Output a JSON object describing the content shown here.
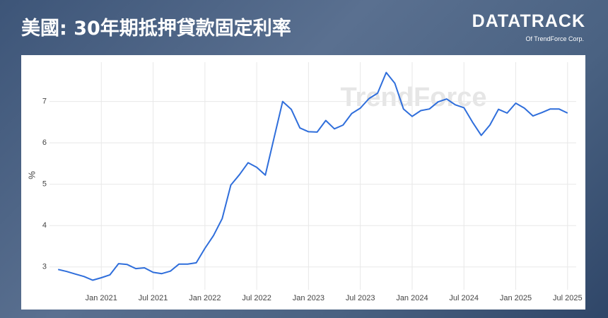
{
  "header": {
    "title": "美國: 30年期抵押貸款固定利率",
    "logo": "DATATRACK",
    "logo_sub": "Of TrendForce Corp."
  },
  "chart_data": {
    "type": "line",
    "watermark": "TrendForce",
    "y_label": "%",
    "x": [
      "2020-08",
      "2020-09",
      "2020-10",
      "2020-11",
      "2020-12",
      "2021-01",
      "2021-02",
      "2021-03",
      "2021-04",
      "2021-05",
      "2021-06",
      "2021-07",
      "2021-08",
      "2021-09",
      "2021-10",
      "2021-11",
      "2021-12",
      "2022-01",
      "2022-02",
      "2022-03",
      "2022-04",
      "2022-05",
      "2022-06",
      "2022-07",
      "2022-08",
      "2022-09",
      "2022-10",
      "2022-11",
      "2022-12",
      "2023-01",
      "2023-02",
      "2023-03",
      "2023-04",
      "2023-05",
      "2023-06",
      "2023-07",
      "2023-08",
      "2023-09",
      "2023-10",
      "2023-11",
      "2023-12",
      "2024-01",
      "2024-02",
      "2024-03",
      "2024-04",
      "2024-05",
      "2024-06",
      "2024-07",
      "2024-08",
      "2024-09",
      "2024-10",
      "2024-11",
      "2024-12",
      "2025-01",
      "2025-02",
      "2025-03",
      "2025-04",
      "2025-05",
      "2025-06",
      "2025-07"
    ],
    "series": [
      {
        "name": "30年期抵押貸款固定利率",
        "color": "#2f6edb",
        "values": [
          2.94,
          2.89,
          2.83,
          2.77,
          2.68,
          2.74,
          2.81,
          3.08,
          3.06,
          2.96,
          2.98,
          2.87,
          2.84,
          2.9,
          3.07,
          3.07,
          3.1,
          3.45,
          3.76,
          4.17,
          4.98,
          5.23,
          5.52,
          5.41,
          5.22,
          6.11,
          7.0,
          6.81,
          6.36,
          6.27,
          6.26,
          6.54,
          6.34,
          6.43,
          6.71,
          6.84,
          7.07,
          7.2,
          7.7,
          7.44,
          6.82,
          6.64,
          6.78,
          6.82,
          6.99,
          7.06,
          6.92,
          6.85,
          6.5,
          6.18,
          6.43,
          6.81,
          6.72,
          6.96,
          6.84,
          6.65,
          6.73,
          6.82,
          6.82,
          6.72
        ]
      }
    ],
    "xlim": [
      "2020-07",
      "2025-08"
    ],
    "xticks": [
      {
        "value": "2021-01",
        "label": "Jan 2021"
      },
      {
        "value": "2021-07",
        "label": "Jul 2021"
      },
      {
        "value": "2022-01",
        "label": "Jan 2022"
      },
      {
        "value": "2022-07",
        "label": "Jul 2022"
      },
      {
        "value": "2023-01",
        "label": "Jan 2023"
      },
      {
        "value": "2023-07",
        "label": "Jul 2023"
      },
      {
        "value": "2024-01",
        "label": "Jan 2024"
      },
      {
        "value": "2024-07",
        "label": "Jul 2024"
      },
      {
        "value": "2025-01",
        "label": "Jan 2025"
      },
      {
        "value": "2025-07",
        "label": "Jul 2025"
      }
    ],
    "ylim": [
      2.45,
      7.95
    ],
    "yticks": [
      3,
      4,
      5,
      6,
      7
    ],
    "grid": true
  }
}
